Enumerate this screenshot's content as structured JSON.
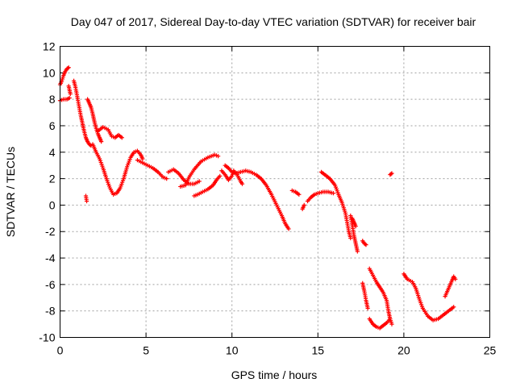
{
  "chart_data": {
    "type": "scatter",
    "title": "Day 047 of 2017, Sidereal Day-to-day VTEC variation (SDTVAR) for receiver bair",
    "xlabel": "GPS time / hours",
    "ylabel": "SDTVAR / TECUs",
    "xlim": [
      0,
      25
    ],
    "ylim": [
      -10,
      12
    ],
    "xticks": [
      0,
      5,
      10,
      15,
      20,
      25
    ],
    "yticks": [
      -10,
      -8,
      -6,
      -4,
      -2,
      0,
      2,
      4,
      6,
      8,
      10,
      12
    ],
    "grid": true,
    "marker": "+",
    "series": [
      {
        "name": "SDTVAR",
        "color": "#ff0000",
        "segments": [
          [
            [
              0.0,
              9.1
            ],
            [
              0.1,
              9.4
            ],
            [
              0.2,
              9.8
            ],
            [
              0.3,
              10.1
            ],
            [
              0.4,
              10.3
            ],
            [
              0.5,
              10.4
            ]
          ],
          [
            [
              0.0,
              7.9
            ],
            [
              0.2,
              8.0
            ],
            [
              0.4,
              8.0
            ],
            [
              0.55,
              8.1
            ]
          ],
          [
            [
              0.5,
              9.0
            ],
            [
              0.6,
              8.4
            ]
          ],
          [
            [
              0.8,
              9.4
            ],
            [
              0.9,
              8.9
            ],
            [
              1.0,
              8.2
            ],
            [
              1.1,
              7.5
            ],
            [
              1.2,
              6.8
            ],
            [
              1.3,
              6.2
            ],
            [
              1.4,
              5.6
            ],
            [
              1.5,
              5.1
            ],
            [
              1.6,
              4.8
            ],
            [
              1.7,
              4.6
            ],
            [
              1.8,
              4.5
            ]
          ],
          [
            [
              1.6,
              8.0
            ],
            [
              1.7,
              7.7
            ],
            [
              1.8,
              7.4
            ],
            [
              1.9,
              6.9
            ],
            [
              2.0,
              6.3
            ],
            [
              2.1,
              5.8
            ],
            [
              2.2,
              5.4
            ],
            [
              2.3,
              5.1
            ],
            [
              2.4,
              4.8
            ]
          ],
          [
            [
              1.5,
              0.7
            ],
            [
              1.55,
              0.3
            ]
          ],
          [
            [
              1.9,
              4.6
            ],
            [
              2.1,
              4.0
            ],
            [
              2.3,
              3.5
            ],
            [
              2.5,
              2.8
            ],
            [
              2.7,
              2.0
            ],
            [
              2.9,
              1.3
            ],
            [
              3.1,
              0.8
            ],
            [
              3.3,
              0.9
            ],
            [
              3.5,
              1.3
            ],
            [
              3.7,
              2.0
            ],
            [
              3.9,
              2.9
            ],
            [
              4.1,
              3.6
            ],
            [
              4.3,
              4.0
            ],
            [
              4.5,
              4.1
            ],
            [
              4.7,
              3.8
            ],
            [
              4.8,
              3.5
            ]
          ],
          [
            [
              2.2,
              5.6
            ],
            [
              2.5,
              5.9
            ],
            [
              2.8,
              5.7
            ],
            [
              3.0,
              5.2
            ],
            [
              3.2,
              5.1
            ],
            [
              3.4,
              5.3
            ],
            [
              3.6,
              5.1
            ]
          ],
          [
            [
              4.5,
              3.4
            ],
            [
              4.8,
              3.2
            ],
            [
              5.1,
              3.0
            ],
            [
              5.4,
              2.8
            ],
            [
              5.7,
              2.5
            ],
            [
              6.0,
              2.1
            ],
            [
              6.2,
              2.0
            ]
          ],
          [
            [
              6.3,
              2.5
            ],
            [
              6.6,
              2.7
            ],
            [
              6.9,
              2.4
            ],
            [
              7.2,
              1.9
            ],
            [
              7.5,
              1.6
            ],
            [
              7.8,
              1.6
            ],
            [
              8.1,
              1.8
            ]
          ],
          [
            [
              7.0,
              1.4
            ],
            [
              7.3,
              1.5
            ],
            [
              7.5,
              2.1
            ],
            [
              7.8,
              2.7
            ],
            [
              8.2,
              3.3
            ],
            [
              8.6,
              3.6
            ],
            [
              9.0,
              3.8
            ],
            [
              9.2,
              3.7
            ]
          ],
          [
            [
              7.8,
              0.7
            ],
            [
              8.0,
              0.8
            ],
            [
              8.3,
              1.0
            ],
            [
              8.6,
              1.2
            ],
            [
              8.9,
              1.5
            ],
            [
              9.1,
              1.9
            ],
            [
              9.3,
              2.2
            ]
          ],
          [
            [
              9.4,
              2.6
            ],
            [
              9.6,
              2.3
            ],
            [
              9.8,
              1.9
            ],
            [
              10.0,
              2.2
            ],
            [
              10.1,
              2.6
            ],
            [
              10.3,
              2.3
            ],
            [
              10.5,
              1.8
            ],
            [
              10.6,
              1.6
            ]
          ],
          [
            [
              9.6,
              3.0
            ],
            [
              9.8,
              2.8
            ],
            [
              10.0,
              2.5
            ],
            [
              10.2,
              2.4
            ],
            [
              10.5,
              2.5
            ],
            [
              10.8,
              2.6
            ],
            [
              11.1,
              2.5
            ],
            [
              11.4,
              2.3
            ],
            [
              11.7,
              2.0
            ],
            [
              12.0,
              1.5
            ],
            [
              12.3,
              0.8
            ],
            [
              12.6,
              0.0
            ],
            [
              12.9,
              -0.8
            ],
            [
              13.1,
              -1.4
            ],
            [
              13.3,
              -1.8
            ]
          ],
          [
            [
              13.5,
              1.1
            ],
            [
              13.7,
              1.0
            ],
            [
              13.9,
              0.8
            ]
          ],
          [
            [
              14.1,
              -0.3
            ],
            [
              14.2,
              0.0
            ]
          ],
          [
            [
              14.4,
              0.3
            ],
            [
              14.6,
              0.6
            ],
            [
              14.8,
              0.8
            ],
            [
              15.0,
              0.9
            ],
            [
              15.3,
              1.0
            ],
            [
              15.6,
              1.0
            ],
            [
              15.9,
              0.9
            ]
          ],
          [
            [
              15.2,
              2.5
            ],
            [
              15.4,
              2.3
            ],
            [
              15.7,
              2.0
            ],
            [
              16.0,
              1.5
            ],
            [
              16.2,
              0.8
            ],
            [
              16.4,
              0.2
            ],
            [
              16.6,
              -0.6
            ],
            [
              16.7,
              -1.3
            ],
            [
              16.8,
              -2.0
            ],
            [
              16.9,
              -2.5
            ]
          ],
          [
            [
              16.9,
              -0.8
            ],
            [
              17.0,
              -1.5
            ],
            [
              17.1,
              -2.3
            ],
            [
              17.2,
              -2.9
            ],
            [
              17.3,
              -3.5
            ]
          ],
          [
            [
              17.0,
              -1.0
            ],
            [
              17.1,
              -1.3
            ],
            [
              17.2,
              -1.6
            ]
          ],
          [
            [
              17.6,
              -2.7
            ],
            [
              17.7,
              -2.9
            ],
            [
              17.8,
              -3.0
            ]
          ],
          [
            [
              17.6,
              -5.9
            ],
            [
              17.7,
              -6.5
            ],
            [
              17.8,
              -7.2
            ],
            [
              17.9,
              -7.8
            ]
          ],
          [
            [
              18.0,
              -8.6
            ],
            [
              18.2,
              -9.0
            ],
            [
              18.4,
              -9.2
            ],
            [
              18.6,
              -9.3
            ],
            [
              18.8,
              -9.1
            ],
            [
              19.0,
              -8.9
            ],
            [
              19.2,
              -8.6
            ]
          ],
          [
            [
              18.0,
              -4.8
            ],
            [
              18.2,
              -5.3
            ],
            [
              18.4,
              -5.8
            ],
            [
              18.6,
              -6.2
            ],
            [
              18.8,
              -6.6
            ],
            [
              19.0,
              -7.2
            ],
            [
              19.1,
              -8.0
            ],
            [
              19.2,
              -8.6
            ],
            [
              19.3,
              -9.0
            ]
          ],
          [
            [
              19.2,
              2.3
            ],
            [
              19.3,
              2.4
            ]
          ],
          [
            [
              20.0,
              -5.2
            ],
            [
              20.2,
              -5.6
            ],
            [
              20.5,
              -5.8
            ],
            [
              20.7,
              -6.3
            ],
            [
              20.9,
              -7.1
            ],
            [
              21.1,
              -7.8
            ],
            [
              21.4,
              -8.4
            ],
            [
              21.7,
              -8.7
            ],
            [
              22.0,
              -8.6
            ],
            [
              22.3,
              -8.3
            ],
            [
              22.6,
              -8.0
            ],
            [
              22.9,
              -7.7
            ]
          ],
          [
            [
              22.4,
              -6.9
            ],
            [
              22.6,
              -6.3
            ],
            [
              22.8,
              -5.7
            ],
            [
              22.9,
              -5.4
            ],
            [
              23.0,
              -5.6
            ]
          ]
        ]
      }
    ]
  }
}
